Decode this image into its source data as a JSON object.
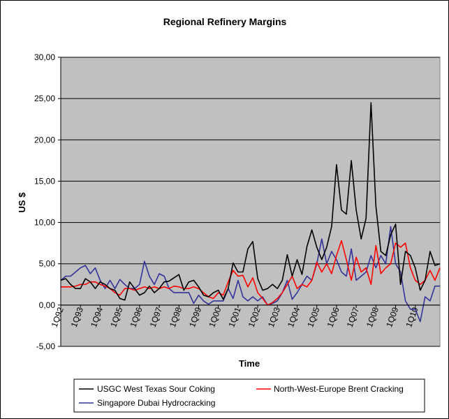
{
  "chart_data": {
    "type": "line",
    "title": "Regional Refinery Margins",
    "xlabel": "Time",
    "ylabel": "US $",
    "ylim": [
      -5,
      30
    ],
    "yticks": [
      "-5,00",
      "0,00",
      "5,00",
      "10,00",
      "15,00",
      "20,00",
      "25,00",
      "30,00"
    ],
    "ytick_values": [
      -5,
      0,
      5,
      10,
      15,
      20,
      25,
      30
    ],
    "xtick_labels": [
      "1Q92",
      "1Q93",
      "1Q94",
      "1Q95",
      "1Q96",
      "1Q97",
      "1Q98",
      "1Q99",
      "1Q00",
      "1Q01",
      "1Q02",
      "1Q03",
      "1Q04",
      "1Q05",
      "1Q06",
      "1Q07",
      "1Q08",
      "1Q09",
      "1Q10"
    ],
    "grid": "horizontal",
    "legend_position": "bottom",
    "colors": {
      "plot_background": "#c0c0c0",
      "usgc": "#000000",
      "nwe": "#ff0000",
      "sing": "#333399"
    },
    "series": [
      {
        "name": "USGC West Texas Sour Coking",
        "color": "#000000",
        "values": [
          3.0,
          3.2,
          2.5,
          2.0,
          2.0,
          3.2,
          2.8,
          2.0,
          2.8,
          2.5,
          2.0,
          1.8,
          0.8,
          0.6,
          2.8,
          2.0,
          1.2,
          1.5,
          2.3,
          1.5,
          2.0,
          2.8,
          2.9,
          3.3,
          3.7,
          1.8,
          2.8,
          3.0,
          2.2,
          1.2,
          1.0,
          1.5,
          1.8,
          0.7,
          2.0,
          5.1,
          4.0,
          4.0,
          6.8,
          7.7,
          3.2,
          1.8,
          2.0,
          2.5,
          2.0,
          3.0,
          6.1,
          3.5,
          5.5,
          3.7,
          7.1,
          9.1,
          7.0,
          5.5,
          7.0,
          9.5,
          17.0,
          11.5,
          11.0,
          17.5,
          11.5,
          8.0,
          10.5,
          24.5,
          12.0,
          6.5,
          6.0,
          8.5,
          9.8,
          2.5,
          6.5,
          6.0,
          4.5,
          1.8,
          3.0,
          6.5,
          4.8,
          5.0
        ]
      },
      {
        "name": "North-West-Europe Brent Cracking",
        "color": "#ff0000",
        "values": [
          2.2,
          2.2,
          2.2,
          2.3,
          2.5,
          2.5,
          2.8,
          2.8,
          2.5,
          2.3,
          2.0,
          1.5,
          1.2,
          2.0,
          2.0,
          1.8,
          2.0,
          2.2,
          2.0,
          2.2,
          2.0,
          2.2,
          2.0,
          2.3,
          2.2,
          2.0,
          2.0,
          2.2,
          2.0,
          1.5,
          1.0,
          0.8,
          1.5,
          1.2,
          2.8,
          4.2,
          3.5,
          3.6,
          2.2,
          3.3,
          1.5,
          0.8,
          0.0,
          0.3,
          0.8,
          1.5,
          2.5,
          3.5,
          2.0,
          2.5,
          2.2,
          3.0,
          5.2,
          4.0,
          5.0,
          3.8,
          6.0,
          7.8,
          5.5,
          3.0,
          5.8,
          4.0,
          4.5,
          2.5,
          7.2,
          3.8,
          4.5,
          5.0,
          7.5,
          7.0,
          7.5,
          4.5,
          3.0,
          2.5,
          3.0,
          4.2,
          3.0,
          4.5
        ]
      },
      {
        "name": "Singapore Dubai Hydrocracking",
        "color": "#333399",
        "values": [
          3.0,
          3.5,
          3.5,
          4.0,
          4.5,
          4.8,
          3.8,
          4.5,
          3.0,
          2.0,
          3.0,
          2.0,
          3.1,
          2.5,
          2.0,
          2.0,
          2.5,
          5.3,
          3.5,
          2.5,
          3.8,
          3.5,
          2.0,
          1.5,
          1.5,
          1.5,
          1.5,
          0.2,
          1.2,
          0.5,
          0.1,
          0.5,
          0.5,
          0.5,
          2.0,
          0.8,
          3.0,
          1.0,
          0.5,
          1.0,
          0.5,
          1.0,
          0.0,
          0.2,
          0.5,
          1.5,
          3.0,
          0.7,
          1.5,
          2.5,
          3.5,
          3.0,
          5.0,
          8.0,
          5.0,
          6.5,
          5.5,
          4.0,
          3.5,
          6.8,
          3.0,
          3.5,
          4.0,
          6.0,
          4.5,
          6.0,
          5.0,
          9.5,
          5.0,
          4.0,
          0.5,
          -0.5,
          -0.5,
          -2.0,
          1.0,
          0.5,
          2.3,
          2.3
        ]
      }
    ]
  }
}
